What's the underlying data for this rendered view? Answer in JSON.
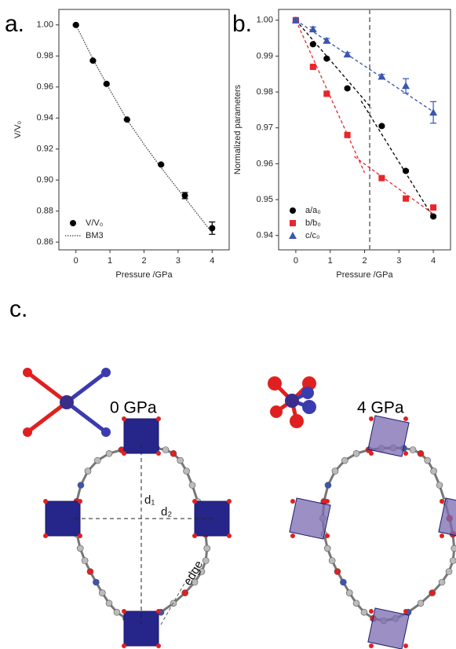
{
  "chart_data": [
    {
      "type": "scatter",
      "y_label": "V/V₀",
      "x_label": "Pressure /GPa",
      "xlim": [
        -0.5,
        4.5
      ],
      "xticks": [
        0,
        1,
        2,
        3,
        4
      ],
      "ylim": [
        0.855,
        1.01
      ],
      "yticks": [
        0.86,
        0.88,
        {
          "value": 0.9,
          "label": "0.90"
        },
        0.92,
        0.94,
        0.96,
        0.98,
        {
          "value": 1,
          "label": "1.00"
        }
      ],
      "legend": "lower left",
      "series": [
        {
          "name": "V/V₀",
          "color": "#000000",
          "marker": "circle",
          "x": [
            0,
            0.5,
            0.9,
            1.5,
            2.5,
            3.2,
            4.0
          ],
          "values": [
            1.0,
            0.977,
            0.962,
            0.939,
            0.91,
            0.89,
            0.869
          ],
          "errors": [
            0.0005,
            0.0005,
            0.0005,
            0.0005,
            0.0005,
            0.002,
            0.004
          ]
        }
      ],
      "fits": [
        {
          "name": "BM3",
          "color": "#444444",
          "style": "dotted",
          "x": [
            0,
            0.5,
            1,
            1.5,
            2,
            2.5,
            3,
            3.5,
            4
          ],
          "values": [
            1.0,
            0.978,
            0.958,
            0.939,
            0.923,
            0.908,
            0.894,
            0.88,
            0.866
          ]
        }
      ]
    },
    {
      "type": "scatter",
      "y_label": "Normalized parameters",
      "x_label": "Pressure /GPa",
      "xlim": [
        -0.5,
        4.5
      ],
      "xticks": [
        0,
        1,
        2,
        3,
        4
      ],
      "ylim": [
        0.936,
        1.003
      ],
      "yticks": [
        0.94,
        0.95,
        0.96,
        0.97,
        0.98,
        0.99,
        {
          "value": 1,
          "label": "1.00"
        }
      ],
      "legend": "lower left",
      "vline": {
        "x": 2.15,
        "color": "#888888"
      },
      "series": [
        {
          "name": "a/a₀",
          "color": "#000000",
          "marker": "circle",
          "x": [
            0,
            0.5,
            0.9,
            1.5,
            2.5,
            3.2,
            4.0
          ],
          "values": [
            1.0,
            0.9933,
            0.9893,
            0.981,
            0.9705,
            0.958,
            0.9453
          ],
          "errors": [
            0.0003,
            0.0003,
            0.0003,
            0.0003,
            0.0003,
            0.0003,
            0.0003
          ]
        },
        {
          "name": "b/b₀",
          "color": "#e8262a",
          "marker": "square",
          "x": [
            0,
            0.5,
            0.9,
            1.5,
            2.5,
            3.2,
            4.0
          ],
          "values": [
            1.0,
            0.987,
            0.9795,
            0.968,
            0.956,
            0.9503,
            0.9478
          ],
          "errors": [
            0.0003,
            0.0003,
            0.0003,
            0.0003,
            0.0003,
            0.0003,
            0.0003
          ]
        },
        {
          "name": "c/c₀",
          "color": "#3b56b0",
          "marker": "triangle",
          "x": [
            0,
            0.5,
            0.9,
            1.5,
            2.5,
            3.2,
            4.0
          ],
          "values": [
            1.0,
            0.9975,
            0.9943,
            0.9905,
            0.9843,
            0.9817,
            0.9743
          ],
          "errors": [
            0.0005,
            0.0006,
            0.0006,
            0.0005,
            0.0006,
            0.002,
            0.003
          ]
        }
      ],
      "fits": [
        {
          "color": "#000000",
          "style": "dashed",
          "x": [
            0,
            2.2
          ],
          "values": [
            1.0,
            0.9755
          ]
        },
        {
          "color": "#000000",
          "style": "dashed",
          "x": [
            1.9,
            4.0
          ],
          "values": [
            0.9775,
            0.945
          ]
        },
        {
          "color": "#e8262a",
          "style": "dashed",
          "x": [
            0,
            2.0
          ],
          "values": [
            1.0,
            0.9575
          ]
        },
        {
          "color": "#e8262a",
          "style": "dashed",
          "x": [
            1.7,
            4.0
          ],
          "values": [
            0.962,
            0.946
          ]
        },
        {
          "color": "#3b56b0",
          "style": "dashed",
          "x": [
            0,
            4.0
          ],
          "values": [
            1.0,
            0.9745
          ]
        }
      ]
    }
  ],
  "figure": {
    "panel_labels": [
      "a.",
      "b.",
      "c."
    ],
    "structures": [
      {
        "label": "0 GPa"
      },
      {
        "label": "4 GPa"
      }
    ],
    "distance_labels": [
      "d₁",
      "d₂"
    ],
    "edge_label": "edge"
  }
}
